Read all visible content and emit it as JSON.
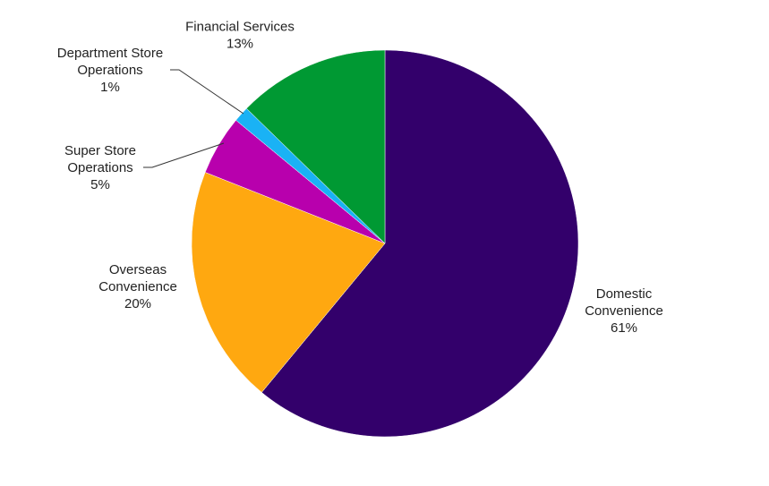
{
  "chart_data": {
    "type": "pie",
    "title": "",
    "start_angle_deg": 0,
    "direction": "clockwise",
    "slices": [
      {
        "label_lines": [
          "Domestic",
          "Convenience"
        ],
        "pct_text": "61%",
        "value": 61,
        "color": "#33006b"
      },
      {
        "label_lines": [
          "Overseas",
          "Convenience"
        ],
        "pct_text": "20%",
        "value": 20,
        "color": "#ffa810"
      },
      {
        "label_lines": [
          "Super Store",
          "Operations"
        ],
        "pct_text": "5%",
        "value": 5,
        "color": "#b800ad"
      },
      {
        "label_lines": [
          "Department Store",
          "Operations"
        ],
        "pct_text": "1%",
        "value": 1.3,
        "color": "#1ab2f5"
      },
      {
        "label_lines": [
          "Financial Services"
        ],
        "pct_text": "13%",
        "value": 12.7,
        "color": "#009933"
      }
    ]
  }
}
